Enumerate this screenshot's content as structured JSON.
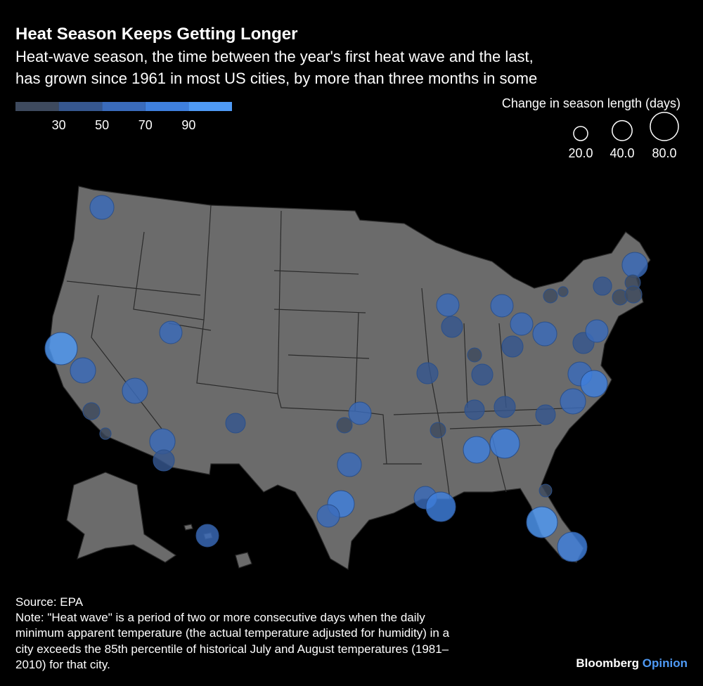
{
  "header": {
    "title": "Heat Season Keeps Getting Longer",
    "subtitle": [
      "Heat-wave season, the time between the year's first heat wave and the last,",
      "has grown since 1961 in most US cities, by more than three months in some"
    ]
  },
  "chart_data": {
    "type": "bubble-map",
    "color_legend": {
      "colors": [
        "#3e4a5e",
        "#36578f",
        "#3a6bbb",
        "#3f80de",
        "#4f9af5"
      ],
      "ticks": [
        30,
        50,
        70,
        90
      ]
    },
    "size_legend": {
      "title": "Change in season length (days)",
      "values": [
        20,
        40,
        80
      ],
      "value_labels": [
        "20.0",
        "40.0",
        "80.0"
      ]
    },
    "values": [
      58,
      105,
      65,
      29,
      13,
      51,
      65,
      65,
      45,
      39,
      24,
      51,
      58,
      72,
      51,
      51,
      88,
      72,
      88,
      24,
      39,
      45,
      39,
      65,
      45,
      45,
      20,
      45,
      51,
      45,
      51,
      51,
      58,
      58,
      72,
      45,
      51,
      20,
      10,
      34,
      65,
      24,
      24,
      29,
      16,
      96,
      88,
      51
    ]
  },
  "footer": {
    "source": "Source: EPA",
    "note": [
      "Note: \"Heat wave\" is a period of two or more consecutive days when the daily",
      "minimum apparent temperature (the actual temperature adjusted for humidity) in a",
      "city exceeds the 85th percentile of historical July and August temperatures (1981–",
      "2010) for that city."
    ],
    "brand": "Bloomberg",
    "brand_suffix": "Opinion"
  }
}
